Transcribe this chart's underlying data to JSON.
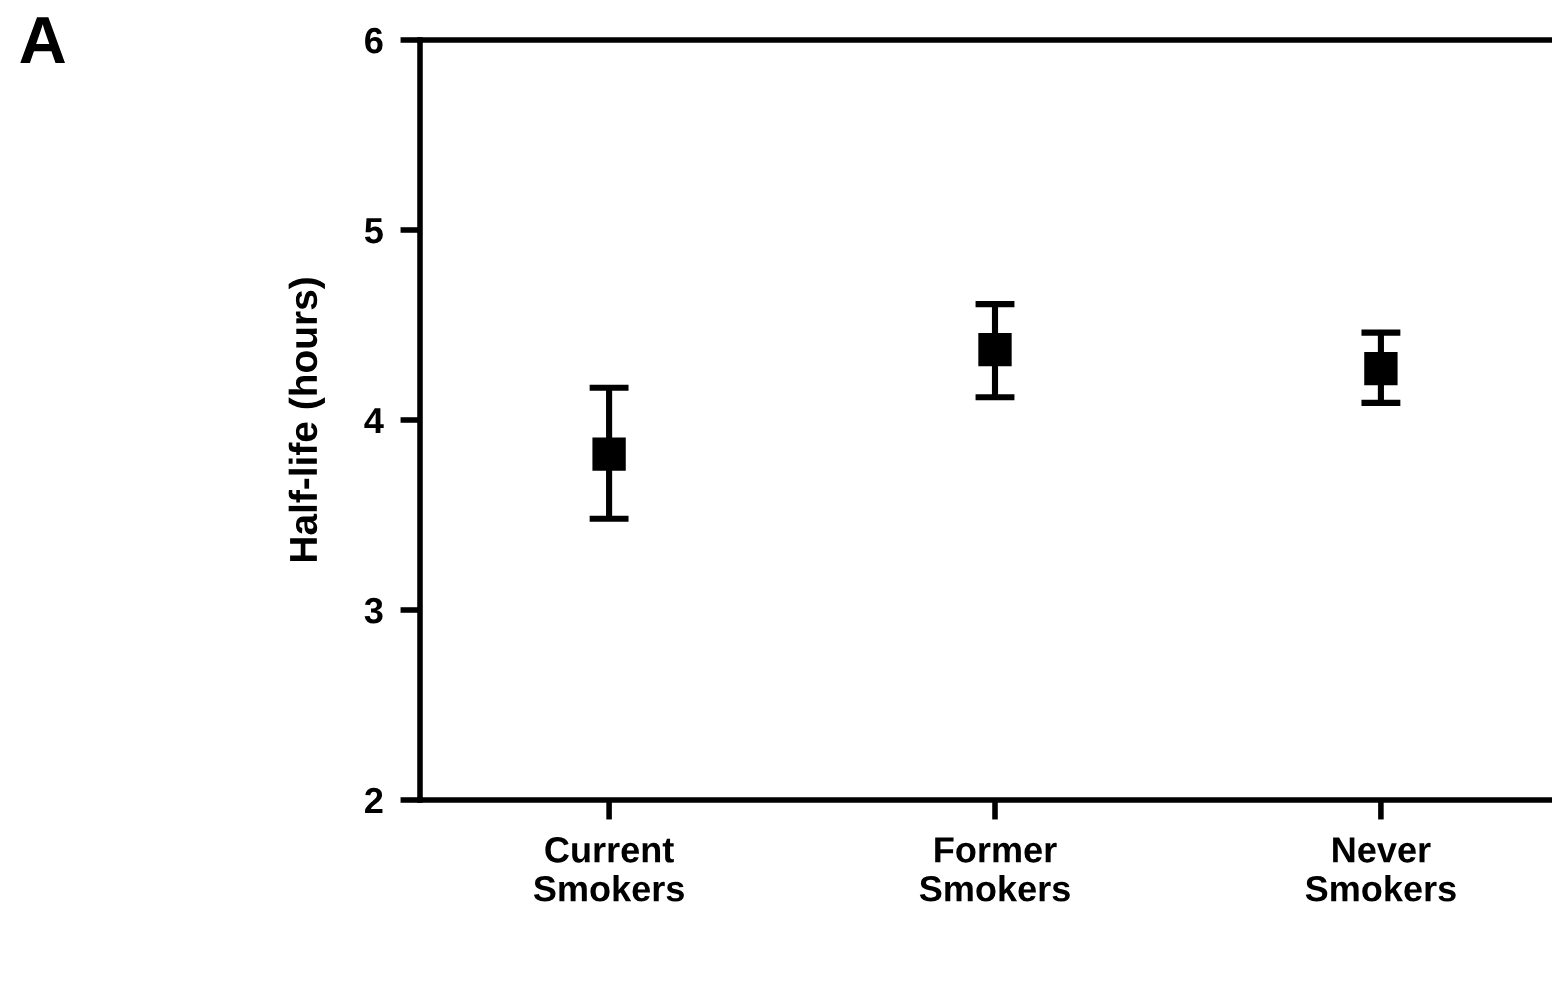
{
  "chart_data": {
    "type": "scatter",
    "ylabel": "Half-life (hours)",
    "annotations": [
      "A"
    ],
    "categories": [
      "Current\nSmokers",
      "Former\nSmokers",
      "Never\nSmokers"
    ],
    "values": [
      3.82,
      4.37,
      4.27
    ],
    "errors": [
      [
        3.48,
        4.17
      ],
      [
        4.12,
        4.61
      ],
      [
        4.09,
        4.46
      ]
    ],
    "color": "#000000",
    "marker": "square",
    "ylim": [
      2,
      6
    ],
    "yticks": [
      2,
      3,
      4,
      5,
      6
    ],
    "grid": false,
    "legend": false
  }
}
